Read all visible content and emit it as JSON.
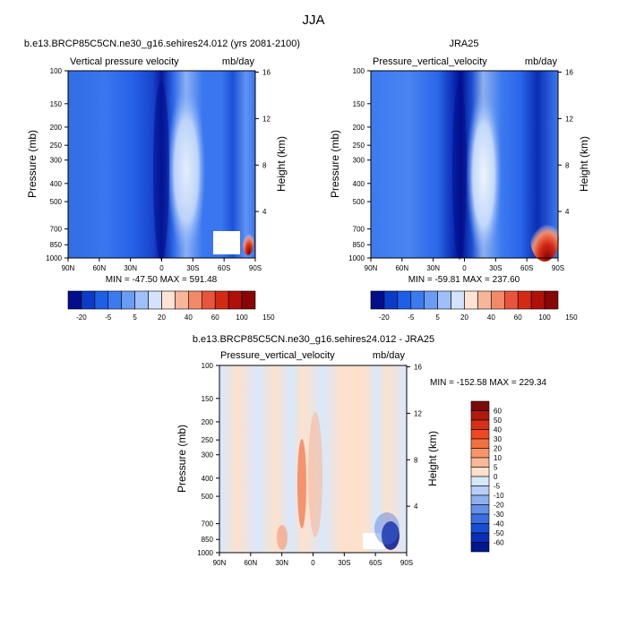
{
  "figure_title": "JJA",
  "chart_data": [
    {
      "type": "heatmap",
      "panel": "top-left",
      "title": "b.e13.BRCP85C5CN.ne30_g16.sehires24.012 (yrs 2081-2100)",
      "left_label": "Vertical pressure velocity",
      "right_label": "mb/day",
      "xlabel": "",
      "ylabel": "Pressure (mb)",
      "ylabel_right": "Height (km)",
      "x_ticks": [
        "90N",
        "60N",
        "30N",
        "0",
        "30S",
        "60S",
        "90S"
      ],
      "y_ticks": [
        "100",
        "150",
        "200",
        "250",
        "300",
        "400",
        "500",
        "700",
        "850",
        "1000"
      ],
      "y_right_ticks": [
        "16",
        "12",
        "8",
        "4"
      ],
      "stats": "MIN = -47.50   MAX = 591.48",
      "colorbar": {
        "orientation": "horizontal",
        "labels": [
          "-20",
          "-5",
          "5",
          "20",
          "40",
          "60",
          "100",
          "150"
        ],
        "colors": [
          "#020e8c",
          "#0a3cc8",
          "#1f5ee6",
          "#3c7af0",
          "#6a9cf4",
          "#9ebff7",
          "#d2e3fb",
          "#fde3d4",
          "#f7b69a",
          "#f28a6a",
          "#e8553c",
          "#d42a14",
          "#b01008",
          "#8a0505"
        ]
      },
      "features": [
        {
          "x": 0.5,
          "y": 0.55,
          "level": -40
        },
        {
          "x": 0.63,
          "y": 0.55,
          "level": -5
        },
        {
          "x": 0.88,
          "y": 0.55,
          "level": -30
        },
        {
          "x": 0.96,
          "y": 0.9,
          "level": 60
        }
      ]
    },
    {
      "type": "heatmap",
      "panel": "top-right",
      "title": "JRA25",
      "left_label": "Pressure_vertical_velocity",
      "right_label": "mb/day",
      "xlabel": "",
      "ylabel": "Pressure (mb)",
      "ylabel_right": "Height (km)",
      "x_ticks": [
        "90N",
        "60N",
        "30N",
        "0",
        "30S",
        "60S",
        "90S"
      ],
      "y_ticks": [
        "100",
        "150",
        "200",
        "250",
        "300",
        "400",
        "500",
        "700",
        "850",
        "1000"
      ],
      "y_right_ticks": [
        "16",
        "12",
        "8",
        "4"
      ],
      "stats": "MIN = -59.81   MAX = 237.60",
      "colorbar": {
        "orientation": "horizontal",
        "labels": [
          "-20",
          "-5",
          "5",
          "20",
          "40",
          "60",
          "100",
          "150"
        ],
        "colors": [
          "#020e8c",
          "#0a3cc8",
          "#1f5ee6",
          "#3c7af0",
          "#6a9cf4",
          "#9ebff7",
          "#d2e3fb",
          "#fde3d4",
          "#f7b69a",
          "#f28a6a",
          "#e8553c",
          "#d42a14",
          "#b01008",
          "#8a0505"
        ]
      },
      "features": [
        {
          "x": 0.48,
          "y": 0.55,
          "level": -50
        },
        {
          "x": 0.62,
          "y": 0.55,
          "level": -5
        },
        {
          "x": 0.89,
          "y": 0.55,
          "level": -30
        },
        {
          "x": 0.95,
          "y": 0.88,
          "level": 100
        }
      ]
    },
    {
      "type": "heatmap",
      "panel": "bottom",
      "title": "b.e13.BRCP85C5CN.ne30_g16.sehires24.012 - JRA25",
      "left_label": "Pressure_vertical_velocity",
      "right_label": "mb/day",
      "xlabel": "",
      "ylabel": "Pressure (mb)",
      "ylabel_right": "Height (km)",
      "x_ticks": [
        "90N",
        "60N",
        "30N",
        "0",
        "30S",
        "60S",
        "90S"
      ],
      "y_ticks": [
        "100",
        "150",
        "200",
        "250",
        "300",
        "400",
        "500",
        "700",
        "850",
        "1000"
      ],
      "y_right_ticks": [
        "16",
        "12",
        "8",
        "4"
      ],
      "stats": "MIN = -152.58   MAX = 229.34",
      "colorbar": {
        "orientation": "vertical",
        "labels": [
          "60",
          "50",
          "40",
          "30",
          "20",
          "10",
          "5",
          "0",
          "-5",
          "-10",
          "-20",
          "-30",
          "-40",
          "-50",
          "-60"
        ],
        "colors": [
          "#7d0a0a",
          "#b01a0e",
          "#d63017",
          "#ee4a22",
          "#f57040",
          "#f8946a",
          "#fab896",
          "#fde1cc",
          "#d8e8fc",
          "#b6cff6",
          "#8fb0ee",
          "#6490e8",
          "#3c6ee0",
          "#1a4ed2",
          "#0a2eb4",
          "#021690"
        ]
      },
      "features": [
        {
          "x": 0.08,
          "y": 0.5,
          "level": 0
        },
        {
          "x": 0.45,
          "y": 0.6,
          "level": 20
        },
        {
          "x": 0.88,
          "y": 0.92,
          "level": -60
        }
      ]
    }
  ]
}
